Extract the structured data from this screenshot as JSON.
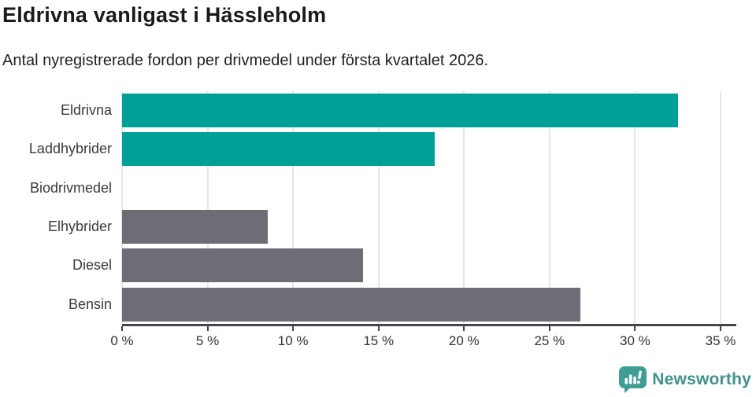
{
  "header": {},
  "chart_data": {
    "type": "bar",
    "orientation": "horizontal",
    "title": "Eldrivna vanligast i Hässleholm",
    "subtitle": "Antal nyregistrerade fordon per drivmedel under första kvartalet 2026.",
    "categories": [
      "Eldrivna",
      "Laddhybrider",
      "Biodrivmedel",
      "Elhybrider",
      "Diesel",
      "Bensin"
    ],
    "values": [
      32.5,
      18.3,
      0,
      8.5,
      14.1,
      26.8
    ],
    "unit": "%",
    "xlim": [
      0,
      35
    ],
    "x_tick_values": [
      0,
      5,
      10,
      15,
      20,
      25,
      30,
      35
    ],
    "x_ticks": [
      "0 %",
      "5 %",
      "10 %",
      "15 %",
      "20 %",
      "25 %",
      "30 %",
      "35 %"
    ],
    "bar_colors": [
      "#00a099",
      "#00a099",
      "#00a099",
      "#6d6d75",
      "#6d6d75",
      "#6d6d75"
    ],
    "grid": "vertical-only",
    "legend": "none"
  },
  "colors": {
    "accent_teal": "#00a099",
    "neutral_gray": "#6d6d75",
    "gridline": "#e4e7e9",
    "axis": "#45454b",
    "title_text": "#1a1a1a",
    "label_text": "#3a3a3a"
  },
  "footer": {
    "brand": "Newsworthy",
    "brand_color": "#41918b",
    "icon": "newsworthy-speech-bubble-chart-icon",
    "icon_color": "#3f9d96"
  }
}
